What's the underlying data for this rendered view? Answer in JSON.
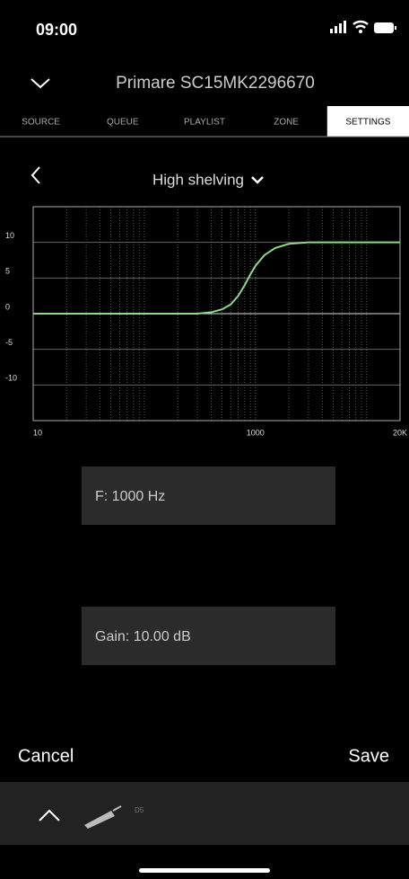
{
  "status_bar": {
    "time": "09:00"
  },
  "header": {
    "title": "Primare SC15MK2296670"
  },
  "tabs": [
    "SOURCE",
    "QUEUE",
    "PLAYLIST",
    "ZONE",
    "SETTINGS"
  ],
  "filter": {
    "name": "High shelving"
  },
  "chart_data": {
    "type": "line",
    "log_x": true,
    "grid": true,
    "x": [
      10,
      300,
      400,
      500,
      600,
      700,
      800,
      900,
      1000,
      1200,
      1500,
      2000,
      3000,
      20000
    ],
    "series": [
      {
        "color": "#8fd88a",
        "values": [
          0,
          0,
          0.2,
          0.6,
          1.3,
          2.5,
          4,
          5.5,
          6.7,
          8.2,
          9.2,
          9.8,
          10,
          10
        ]
      }
    ],
    "xlim": [
      10,
      20000
    ],
    "xticks": [
      10,
      1000,
      {
        "value": 20000,
        "label": "20K"
      }
    ],
    "xminorticks": [
      20,
      30,
      40,
      50,
      60,
      70,
      80,
      90,
      100,
      200,
      300,
      400,
      500,
      600,
      700,
      800,
      900,
      2000,
      3000,
      4000,
      5000,
      6000,
      7000,
      8000,
      9000,
      10000
    ],
    "ylim": [
      -15,
      15
    ],
    "yticks": [
      10,
      5,
      0,
      -5,
      -10
    ]
  },
  "fields": [
    "F: 1000 Hz",
    "Gain: 10.00 dB"
  ],
  "actions": {
    "cancel": "Cancel",
    "save": "Save"
  },
  "footer": {
    "device": "D5"
  }
}
